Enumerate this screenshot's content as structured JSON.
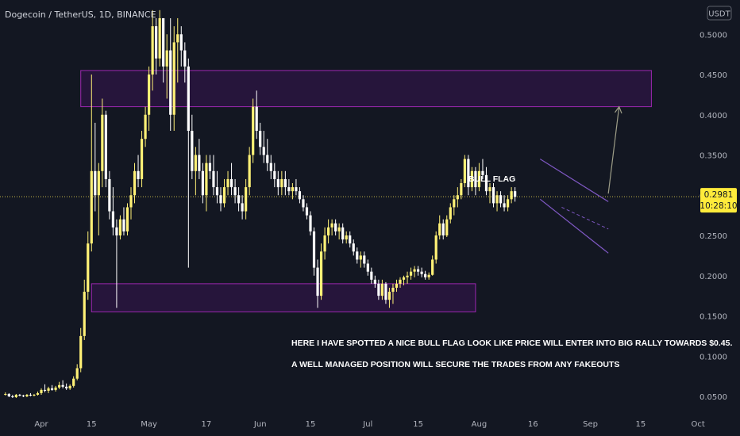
{
  "header": {
    "title": "Dogecoin / TetherUS, 1D, BINANCE"
  },
  "axis": {
    "currency_label": "USDT"
  },
  "price_badge": {
    "price": "0.2981",
    "countdown": "10:28:10"
  },
  "annotations": {
    "flag_label": "BULL FLAG",
    "note_line1": "HERE I HAVE SPOTTED A NICE BULL FLAG LOOK LIKE PRICE WILL ENTER INTO BIG RALLY TOWARDS $0.45.",
    "note_line2": "A WELL MANAGED POSITION WILL SECURE THE TRADES FROM ANY FAKEOUTS"
  },
  "colors": {
    "background": "#131722",
    "candle_up": "#fff176",
    "candle_down": "#ffffff",
    "zone_border": "#9c27b0",
    "zone_fill": "#2a1540",
    "channel": "#7e57c2",
    "arrow": "#9e9e88",
    "badge": "#ffeb3b"
  },
  "chart_data": {
    "type": "candlestick",
    "title": "Dogecoin / TetherUS, 1D, BINANCE",
    "ylabel": "USDT",
    "ylim": [
      0.03,
      0.52
    ],
    "y_ticks": [
      "0.5000",
      "0.4500",
      "0.4000",
      "0.3500",
      "0.3000",
      "0.2500",
      "0.2000",
      "0.1500",
      "0.1000",
      "0.0500"
    ],
    "x_ticks": [
      "Apr",
      "15",
      "May",
      "17",
      "Jun",
      "15",
      "Jul",
      "15",
      "Aug",
      "16",
      "Sep",
      "15",
      "Oct"
    ],
    "x_tick_days": [
      0,
      14,
      30,
      46,
      61,
      75,
      91,
      105,
      122,
      137,
      153,
      167,
      183
    ],
    "last_price": 0.2981,
    "resistance_zone": [
      0.41,
      0.455
    ],
    "support_zone": [
      0.155,
      0.19
    ],
    "zone_days": {
      "resistance": [
        11,
        170
      ],
      "support": [
        14,
        121
      ]
    },
    "bull_flag": {
      "upper": [
        [
          139,
          0.345
        ],
        [
          158,
          0.292
        ]
      ],
      "lower": [
        [
          139,
          0.295
        ],
        [
          158,
          0.228
        ]
      ],
      "mid": [
        [
          145,
          0.285
        ],
        [
          158,
          0.258
        ]
      ]
    },
    "target_arrow": [
      [
        158,
        0.302
      ],
      [
        161,
        0.41
      ]
    ],
    "candles": [
      [
        -10,
        0.052,
        0.055,
        0.051,
        0.053
      ],
      [
        -9,
        0.053,
        0.054,
        0.049,
        0.05
      ],
      [
        -8,
        0.05,
        0.052,
        0.048,
        0.049
      ],
      [
        -7,
        0.049,
        0.053,
        0.048,
        0.052
      ],
      [
        -6,
        0.052,
        0.053,
        0.05,
        0.051
      ],
      [
        -5,
        0.051,
        0.052,
        0.049,
        0.05
      ],
      [
        -4,
        0.05,
        0.053,
        0.049,
        0.052
      ],
      [
        -3,
        0.052,
        0.054,
        0.05,
        0.051
      ],
      [
        -2,
        0.051,
        0.053,
        0.05,
        0.052
      ],
      [
        -1,
        0.052,
        0.056,
        0.051,
        0.054
      ],
      [
        0,
        0.054,
        0.06,
        0.052,
        0.058
      ],
      [
        1,
        0.058,
        0.065,
        0.055,
        0.057
      ],
      [
        2,
        0.057,
        0.062,
        0.054,
        0.06
      ],
      [
        3,
        0.06,
        0.064,
        0.057,
        0.058
      ],
      [
        4,
        0.058,
        0.063,
        0.056,
        0.061
      ],
      [
        5,
        0.061,
        0.068,
        0.059,
        0.064
      ],
      [
        6,
        0.064,
        0.07,
        0.06,
        0.062
      ],
      [
        7,
        0.062,
        0.066,
        0.058,
        0.06
      ],
      [
        8,
        0.06,
        0.065,
        0.058,
        0.063
      ],
      [
        9,
        0.063,
        0.075,
        0.061,
        0.072
      ],
      [
        10,
        0.072,
        0.09,
        0.07,
        0.085
      ],
      [
        11,
        0.085,
        0.135,
        0.08,
        0.125
      ],
      [
        12,
        0.125,
        0.195,
        0.12,
        0.18
      ],
      [
        13,
        0.18,
        0.255,
        0.17,
        0.24
      ],
      [
        14,
        0.24,
        0.45,
        0.23,
        0.33
      ],
      [
        15,
        0.33,
        0.39,
        0.28,
        0.3
      ],
      [
        16,
        0.3,
        0.34,
        0.25,
        0.33
      ],
      [
        17,
        0.33,
        0.42,
        0.31,
        0.4
      ],
      [
        18,
        0.4,
        0.405,
        0.31,
        0.32
      ],
      [
        19,
        0.32,
        0.33,
        0.27,
        0.28
      ],
      [
        20,
        0.28,
        0.31,
        0.25,
        0.26
      ],
      [
        21,
        0.26,
        0.27,
        0.16,
        0.25
      ],
      [
        22,
        0.25,
        0.275,
        0.245,
        0.27
      ],
      [
        23,
        0.27,
        0.285,
        0.25,
        0.255
      ],
      [
        24,
        0.255,
        0.29,
        0.25,
        0.285
      ],
      [
        25,
        0.285,
        0.31,
        0.27,
        0.3
      ],
      [
        26,
        0.3,
        0.34,
        0.29,
        0.33
      ],
      [
        27,
        0.33,
        0.35,
        0.31,
        0.32
      ],
      [
        28,
        0.32,
        0.38,
        0.31,
        0.37
      ],
      [
        29,
        0.37,
        0.41,
        0.36,
        0.4
      ],
      [
        30,
        0.4,
        0.46,
        0.38,
        0.45
      ],
      [
        31,
        0.45,
        0.53,
        0.43,
        0.51
      ],
      [
        32,
        0.51,
        0.52,
        0.45,
        0.47
      ],
      [
        33,
        0.47,
        0.53,
        0.46,
        0.52
      ],
      [
        34,
        0.52,
        0.52,
        0.44,
        0.46
      ],
      [
        35,
        0.46,
        0.5,
        0.42,
        0.48
      ],
      [
        36,
        0.48,
        0.52,
        0.38,
        0.4
      ],
      [
        37,
        0.4,
        0.51,
        0.38,
        0.49
      ],
      [
        38,
        0.49,
        0.52,
        0.44,
        0.5
      ],
      [
        39,
        0.5,
        0.51,
        0.46,
        0.48
      ],
      [
        40,
        0.48,
        0.49,
        0.44,
        0.46
      ],
      [
        41,
        0.46,
        0.47,
        0.21,
        0.38
      ],
      [
        42,
        0.38,
        0.4,
        0.32,
        0.33
      ],
      [
        43,
        0.33,
        0.36,
        0.3,
        0.35
      ],
      [
        44,
        0.35,
        0.37,
        0.32,
        0.33
      ],
      [
        45,
        0.33,
        0.34,
        0.29,
        0.3
      ],
      [
        46,
        0.3,
        0.35,
        0.28,
        0.34
      ],
      [
        47,
        0.34,
        0.35,
        0.32,
        0.33
      ],
      [
        48,
        0.33,
        0.35,
        0.3,
        0.31
      ],
      [
        49,
        0.31,
        0.33,
        0.29,
        0.3
      ],
      [
        50,
        0.3,
        0.31,
        0.28,
        0.29
      ],
      [
        51,
        0.29,
        0.32,
        0.285,
        0.31
      ],
      [
        52,
        0.31,
        0.33,
        0.3,
        0.32
      ],
      [
        53,
        0.32,
        0.34,
        0.3,
        0.31
      ],
      [
        54,
        0.31,
        0.32,
        0.29,
        0.3
      ],
      [
        55,
        0.3,
        0.31,
        0.28,
        0.29
      ],
      [
        56,
        0.29,
        0.3,
        0.27,
        0.28
      ],
      [
        57,
        0.28,
        0.32,
        0.27,
        0.31
      ],
      [
        58,
        0.31,
        0.36,
        0.3,
        0.35
      ],
      [
        59,
        0.35,
        0.42,
        0.34,
        0.41
      ],
      [
        60,
        0.41,
        0.43,
        0.37,
        0.38
      ],
      [
        61,
        0.38,
        0.39,
        0.35,
        0.36
      ],
      [
        62,
        0.36,
        0.38,
        0.34,
        0.35
      ],
      [
        63,
        0.35,
        0.37,
        0.33,
        0.34
      ],
      [
        64,
        0.34,
        0.35,
        0.32,
        0.33
      ],
      [
        65,
        0.33,
        0.34,
        0.31,
        0.32
      ],
      [
        66,
        0.32,
        0.33,
        0.3,
        0.31
      ],
      [
        67,
        0.31,
        0.33,
        0.3,
        0.32
      ],
      [
        68,
        0.32,
        0.33,
        0.3,
        0.31
      ],
      [
        69,
        0.31,
        0.32,
        0.3,
        0.305
      ],
      [
        70,
        0.305,
        0.315,
        0.295,
        0.31
      ],
      [
        71,
        0.31,
        0.32,
        0.3,
        0.305
      ],
      [
        72,
        0.305,
        0.31,
        0.29,
        0.295
      ],
      [
        73,
        0.295,
        0.3,
        0.28,
        0.285
      ],
      [
        74,
        0.285,
        0.29,
        0.27,
        0.275
      ],
      [
        75,
        0.275,
        0.28,
        0.25,
        0.255
      ],
      [
        76,
        0.255,
        0.26,
        0.2,
        0.21
      ],
      [
        77,
        0.21,
        0.22,
        0.16,
        0.175
      ],
      [
        78,
        0.175,
        0.24,
        0.17,
        0.23
      ],
      [
        79,
        0.23,
        0.26,
        0.22,
        0.25
      ],
      [
        80,
        0.25,
        0.27,
        0.24,
        0.26
      ],
      [
        81,
        0.26,
        0.27,
        0.25,
        0.265
      ],
      [
        82,
        0.265,
        0.27,
        0.25,
        0.255
      ],
      [
        83,
        0.255,
        0.265,
        0.245,
        0.26
      ],
      [
        84,
        0.26,
        0.265,
        0.24,
        0.245
      ],
      [
        85,
        0.245,
        0.255,
        0.24,
        0.25
      ],
      [
        86,
        0.25,
        0.255,
        0.235,
        0.24
      ],
      [
        87,
        0.24,
        0.245,
        0.225,
        0.23
      ],
      [
        88,
        0.23,
        0.235,
        0.215,
        0.22
      ],
      [
        89,
        0.22,
        0.23,
        0.21,
        0.225
      ],
      [
        90,
        0.225,
        0.23,
        0.21,
        0.215
      ],
      [
        91,
        0.215,
        0.22,
        0.2,
        0.205
      ],
      [
        92,
        0.205,
        0.21,
        0.19,
        0.195
      ],
      [
        93,
        0.195,
        0.2,
        0.185,
        0.19
      ],
      [
        94,
        0.19,
        0.195,
        0.17,
        0.175
      ],
      [
        95,
        0.175,
        0.195,
        0.17,
        0.19
      ],
      [
        96,
        0.19,
        0.192,
        0.165,
        0.17
      ],
      [
        97,
        0.17,
        0.185,
        0.16,
        0.18
      ],
      [
        98,
        0.18,
        0.19,
        0.165,
        0.185
      ],
      [
        99,
        0.185,
        0.195,
        0.18,
        0.19
      ],
      [
        100,
        0.19,
        0.198,
        0.185,
        0.195
      ],
      [
        101,
        0.195,
        0.2,
        0.188,
        0.198
      ],
      [
        102,
        0.198,
        0.205,
        0.19,
        0.2
      ],
      [
        103,
        0.2,
        0.21,
        0.195,
        0.205
      ],
      [
        104,
        0.205,
        0.212,
        0.198,
        0.208
      ],
      [
        105,
        0.208,
        0.212,
        0.2,
        0.205
      ],
      [
        106,
        0.205,
        0.21,
        0.198,
        0.202
      ],
      [
        107,
        0.202,
        0.206,
        0.195,
        0.198
      ],
      [
        108,
        0.198,
        0.204,
        0.195,
        0.201
      ],
      [
        109,
        0.201,
        0.225,
        0.2,
        0.22
      ],
      [
        110,
        0.22,
        0.255,
        0.215,
        0.25
      ],
      [
        111,
        0.25,
        0.275,
        0.245,
        0.265
      ],
      [
        112,
        0.265,
        0.27,
        0.245,
        0.25
      ],
      [
        113,
        0.25,
        0.275,
        0.248,
        0.27
      ],
      [
        114,
        0.27,
        0.29,
        0.265,
        0.285
      ],
      [
        115,
        0.285,
        0.3,
        0.275,
        0.295
      ],
      [
        116,
        0.295,
        0.31,
        0.285,
        0.3
      ],
      [
        117,
        0.3,
        0.32,
        0.295,
        0.315
      ],
      [
        118,
        0.315,
        0.35,
        0.31,
        0.345
      ],
      [
        119,
        0.345,
        0.35,
        0.3,
        0.31
      ],
      [
        120,
        0.31,
        0.335,
        0.305,
        0.33
      ],
      [
        121,
        0.33,
        0.335,
        0.3,
        0.31
      ],
      [
        122,
        0.31,
        0.34,
        0.305,
        0.33
      ],
      [
        123,
        0.33,
        0.345,
        0.32,
        0.325
      ],
      [
        124,
        0.325,
        0.335,
        0.3,
        0.305
      ],
      [
        125,
        0.305,
        0.315,
        0.29,
        0.31
      ],
      [
        126,
        0.31,
        0.315,
        0.285,
        0.29
      ],
      [
        127,
        0.29,
        0.305,
        0.28,
        0.3
      ],
      [
        128,
        0.3,
        0.305,
        0.285,
        0.29
      ],
      [
        129,
        0.29,
        0.3,
        0.28,
        0.285
      ],
      [
        130,
        0.285,
        0.3,
        0.28,
        0.295
      ],
      [
        131,
        0.295,
        0.31,
        0.29,
        0.305
      ],
      [
        132,
        0.305,
        0.31,
        0.292,
        0.298
      ]
    ]
  }
}
